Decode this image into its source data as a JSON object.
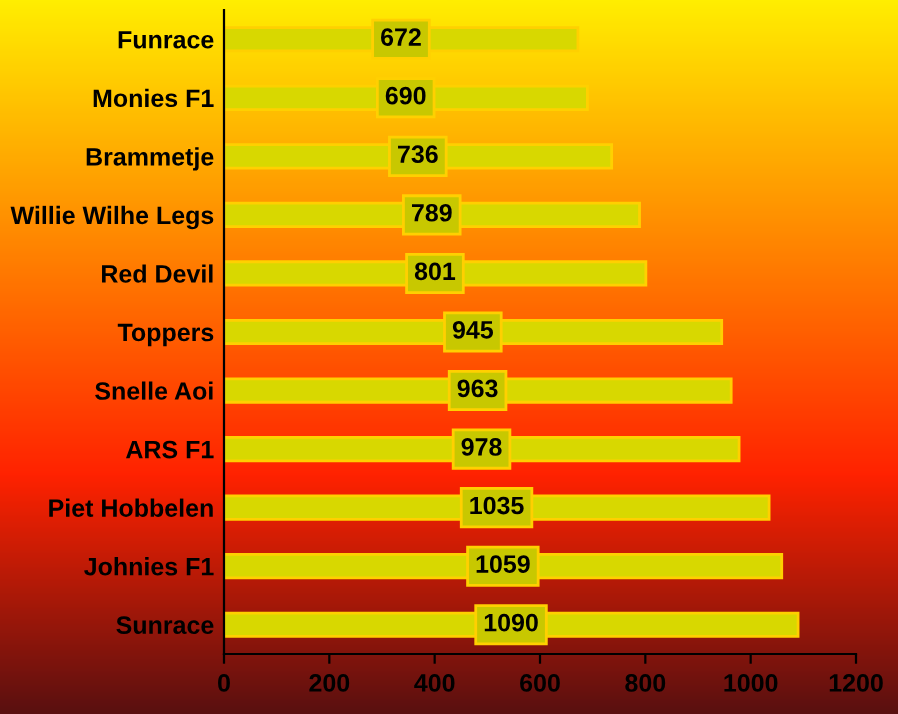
{
  "chart_data": {
    "type": "bar",
    "orientation": "horizontal",
    "categories": [
      "Funrace",
      "Monies F1",
      "Brammetje",
      "Willie Wilhe Legs",
      "Red Devil",
      "Toppers",
      "Snelle Aoi",
      "ARS F1",
      "Piet Hobbelen",
      "Johnies F1",
      "Sunrace"
    ],
    "values": [
      672,
      690,
      736,
      789,
      801,
      945,
      963,
      978,
      1035,
      1059,
      1090
    ],
    "color": "#d8d800",
    "xlim": [
      0,
      1200
    ],
    "xticks": [
      0,
      200,
      400,
      600,
      800,
      1000,
      1200
    ],
    "data_labels": true,
    "grid": false,
    "legend": false
  }
}
